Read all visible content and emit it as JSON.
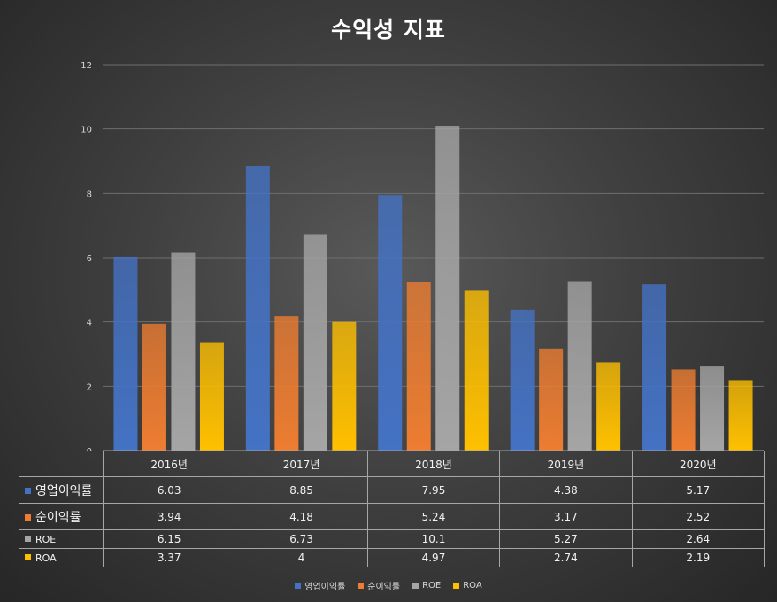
{
  "chart_data": {
    "type": "bar",
    "title": "수익성 지표",
    "categories": [
      "2016년",
      "2017년",
      "2018년",
      "2019년",
      "2020년"
    ],
    "series": [
      {
        "name": "영업이익률",
        "color": "#4472c4",
        "values": [
          6.03,
          8.85,
          7.95,
          4.38,
          5.17
        ],
        "labels": [
          "6.03",
          "8.85",
          "7.95",
          "4.38",
          "5.17"
        ]
      },
      {
        "name": "순이익률",
        "color": "#ed7d31",
        "values": [
          3.94,
          4.18,
          5.24,
          3.17,
          2.52
        ],
        "labels": [
          "3.94",
          "4.18",
          "5.24",
          "3.17",
          "2.52"
        ]
      },
      {
        "name": "ROE",
        "color": "#a5a5a5",
        "values": [
          6.15,
          6.73,
          10.1,
          5.27,
          2.64
        ],
        "labels": [
          "6.15",
          "6.73",
          "10.1",
          "5.27",
          "2.64"
        ]
      },
      {
        "name": "ROA",
        "color": "#ffc000",
        "values": [
          3.37,
          4,
          4.97,
          2.74,
          2.19
        ],
        "labels": [
          "3.37",
          "4",
          "4.97",
          "2.74",
          "2.19"
        ]
      }
    ],
    "ylim": [
      0,
      12
    ],
    "yticks": [
      "0",
      "2",
      "4",
      "6",
      "8",
      "10",
      "12"
    ],
    "grid": true,
    "data_table": true,
    "legend": "bottom-center"
  }
}
